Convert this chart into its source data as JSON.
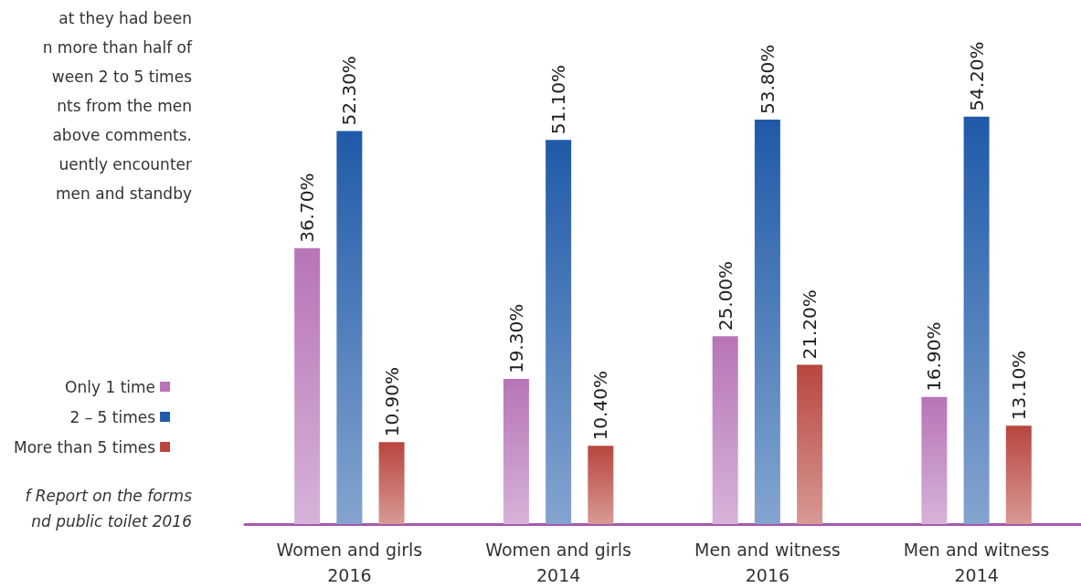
{
  "chart_data": {
    "type": "bar",
    "categories": [
      "Women and girls\n2016",
      "Women and girls\n2014",
      "Men and witness\n2016",
      "Men and witness\n2014"
    ],
    "series": [
      {
        "name": "Only 1 time",
        "color": "#b774b8",
        "values": [
          36.7,
          19.3,
          25.0,
          16.9
        ],
        "value_labels": [
          "36.70%",
          "19.30%",
          "25.00%",
          "16.90%"
        ]
      },
      {
        "name": "2 – 5 times",
        "color": "#1f5aa8",
        "values": [
          52.3,
          51.1,
          53.8,
          54.2
        ],
        "value_labels": [
          "52.30%",
          "51.10%",
          "53.80%",
          "54.20%"
        ]
      },
      {
        "name": "More than 5 times",
        "color": "#b8463e",
        "values": [
          10.9,
          10.4,
          21.2,
          13.1
        ],
        "value_labels": [
          "10.90%",
          "10.40%",
          "21.20%",
          "13.10%"
        ]
      }
    ],
    "annotations": [
      "at they had been",
      "n more than half of",
      "ween 2 to 5 times",
      "nts from the men",
      "above comments.",
      "uently encounter",
      " men and standby",
      "f Report on the forms",
      "nd public toilet 2016"
    ],
    "legend": "left"
  }
}
